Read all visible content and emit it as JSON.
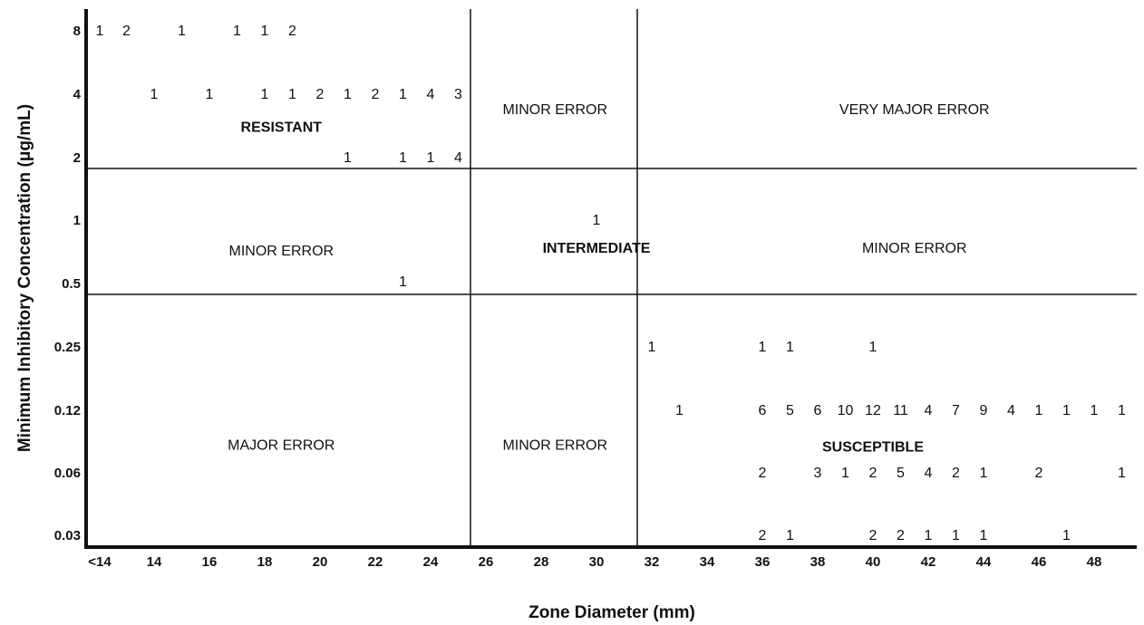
{
  "chart_data": {
    "type": "scatter",
    "xlabel": "Zone Diameter (mm)",
    "ylabel": "Minimum Inhibitory Concentration (μg/mL)",
    "x_ticks": [
      "<14",
      "14",
      "16",
      "18",
      "20",
      "22",
      "24",
      "26",
      "28",
      "30",
      "32",
      "34",
      "36",
      "38",
      "40",
      "42",
      "44",
      "46",
      "48"
    ],
    "y_ticks": [
      "8",
      "4",
      "2",
      "1",
      "0.5",
      "0.25",
      "0.12",
      "0.06",
      "0.03"
    ],
    "x_range": [
      12,
      49
    ],
    "y_scale": "log2",
    "breakpoints": {
      "zone_mm": [
        25.5,
        31.5
      ],
      "mic": [
        1.5,
        0.5
      ]
    },
    "regions": [
      {
        "label": "RESISTANT",
        "bold": true
      },
      {
        "label": "MINOR ERROR",
        "bold": false
      },
      {
        "label": "VERY MAJOR ERROR",
        "bold": false
      },
      {
        "label": "MINOR ERROR",
        "bold": false
      },
      {
        "label": "INTERMEDIATE",
        "bold": true
      },
      {
        "label": "MINOR ERROR",
        "bold": false
      },
      {
        "label": "MAJOR ERROR",
        "bold": false
      },
      {
        "label": "MINOR ERROR",
        "bold": false
      },
      {
        "label": "SUSCEPTIBLE",
        "bold": true
      }
    ],
    "points": [
      {
        "mic": "8",
        "zone": "<14",
        "n": 1
      },
      {
        "mic": "8",
        "zone": 13,
        "n": 2
      },
      {
        "mic": "8",
        "zone": 15,
        "n": 1
      },
      {
        "mic": "8",
        "zone": 17,
        "n": 1
      },
      {
        "mic": "8",
        "zone": 18,
        "n": 1
      },
      {
        "mic": "8",
        "zone": 19,
        "n": 2
      },
      {
        "mic": "4",
        "zone": 14,
        "n": 1
      },
      {
        "mic": "4",
        "zone": 16,
        "n": 1
      },
      {
        "mic": "4",
        "zone": 18,
        "n": 1
      },
      {
        "mic": "4",
        "zone": 19,
        "n": 1
      },
      {
        "mic": "4",
        "zone": 20,
        "n": 2
      },
      {
        "mic": "4",
        "zone": 21,
        "n": 1
      },
      {
        "mic": "4",
        "zone": 22,
        "n": 2
      },
      {
        "mic": "4",
        "zone": 23,
        "n": 1
      },
      {
        "mic": "4",
        "zone": 24,
        "n": 4
      },
      {
        "mic": "4",
        "zone": 25,
        "n": 3
      },
      {
        "mic": "2",
        "zone": 21,
        "n": 1
      },
      {
        "mic": "2",
        "zone": 23,
        "n": 1
      },
      {
        "mic": "2",
        "zone": 24,
        "n": 1
      },
      {
        "mic": "2",
        "zone": 25,
        "n": 4
      },
      {
        "mic": "1",
        "zone": 30,
        "n": 1
      },
      {
        "mic": "0.5",
        "zone": 23,
        "n": 1
      },
      {
        "mic": "0.25",
        "zone": 32,
        "n": 1
      },
      {
        "mic": "0.25",
        "zone": 36,
        "n": 1
      },
      {
        "mic": "0.25",
        "zone": 37,
        "n": 1
      },
      {
        "mic": "0.25",
        "zone": 40,
        "n": 1
      },
      {
        "mic": "0.12",
        "zone": 33,
        "n": 1
      },
      {
        "mic": "0.12",
        "zone": 36,
        "n": 6
      },
      {
        "mic": "0.12",
        "zone": 37,
        "n": 5
      },
      {
        "mic": "0.12",
        "zone": 38,
        "n": 6
      },
      {
        "mic": "0.12",
        "zone": 39,
        "n": 10
      },
      {
        "mic": "0.12",
        "zone": 40,
        "n": 12
      },
      {
        "mic": "0.12",
        "zone": 41,
        "n": 11
      },
      {
        "mic": "0.12",
        "zone": 42,
        "n": 4
      },
      {
        "mic": "0.12",
        "zone": 43,
        "n": 7
      },
      {
        "mic": "0.12",
        "zone": 44,
        "n": 9
      },
      {
        "mic": "0.12",
        "zone": 45,
        "n": 4
      },
      {
        "mic": "0.12",
        "zone": 46,
        "n": 1
      },
      {
        "mic": "0.12",
        "zone": 47,
        "n": 1
      },
      {
        "mic": "0.12",
        "zone": 48,
        "n": 1
      },
      {
        "mic": "0.12",
        "zone": 49,
        "n": 1
      },
      {
        "mic": "0.06",
        "zone": 36,
        "n": 2
      },
      {
        "mic": "0.06",
        "zone": 38,
        "n": 3
      },
      {
        "mic": "0.06",
        "zone": 39,
        "n": 1
      },
      {
        "mic": "0.06",
        "zone": 40,
        "n": 2
      },
      {
        "mic": "0.06",
        "zone": 41,
        "n": 5
      },
      {
        "mic": "0.06",
        "zone": 42,
        "n": 4
      },
      {
        "mic": "0.06",
        "zone": 43,
        "n": 2
      },
      {
        "mic": "0.06",
        "zone": 44,
        "n": 1
      },
      {
        "mic": "0.06",
        "zone": 46,
        "n": 2
      },
      {
        "mic": "0.06",
        "zone": 49,
        "n": 1
      },
      {
        "mic": "0.03",
        "zone": 36,
        "n": 2
      },
      {
        "mic": "0.03",
        "zone": 37,
        "n": 1
      },
      {
        "mic": "0.03",
        "zone": 40,
        "n": 2
      },
      {
        "mic": "0.03",
        "zone": 41,
        "n": 2
      },
      {
        "mic": "0.03",
        "zone": 42,
        "n": 1
      },
      {
        "mic": "0.03",
        "zone": 43,
        "n": 1
      },
      {
        "mic": "0.03",
        "zone": 44,
        "n": 1
      },
      {
        "mic": "0.03",
        "zone": 47,
        "n": 1
      }
    ]
  }
}
